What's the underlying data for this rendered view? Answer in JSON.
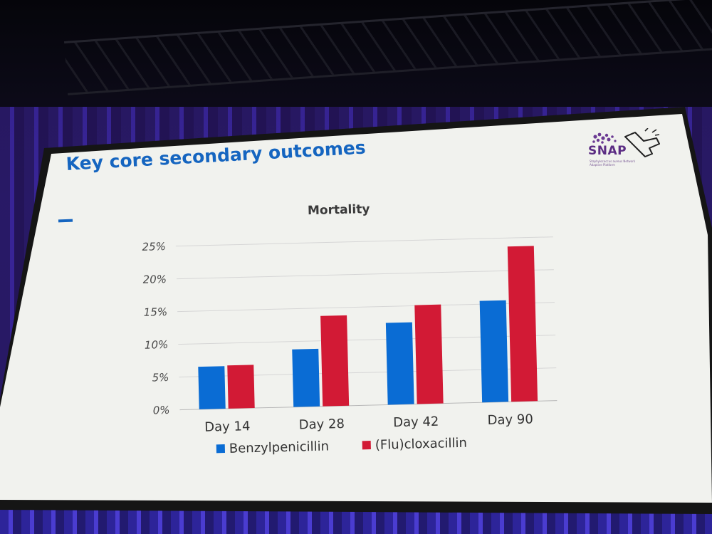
{
  "slide": {
    "title": "Key core secondary outcomes",
    "logo_text": "SNAP",
    "logo_subtitle": "Staphylococcus aureus Network Adaptive Platform"
  },
  "colors": {
    "title": "#1565c0",
    "benzyl": "#0a6cd4",
    "flu": "#d21a35",
    "logo": "#5b2c83"
  },
  "chart_data": {
    "type": "bar",
    "title": "Mortality",
    "categories": [
      "Day 14",
      "Day 28",
      "Day 42",
      "Day 90"
    ],
    "series": [
      {
        "name": "Benzylpenicillin",
        "values": [
          6.5,
          8.8,
          12.5,
          15.5
        ]
      },
      {
        "name": "(Flu)cloxacillin",
        "values": [
          6.6,
          13.8,
          15.1,
          23.7
        ]
      }
    ],
    "ylim": [
      0,
      25
    ],
    "yticks": [
      "0%",
      "5%",
      "10%",
      "15%",
      "20%",
      "25%"
    ],
    "grid": true,
    "legend": "bottom"
  }
}
